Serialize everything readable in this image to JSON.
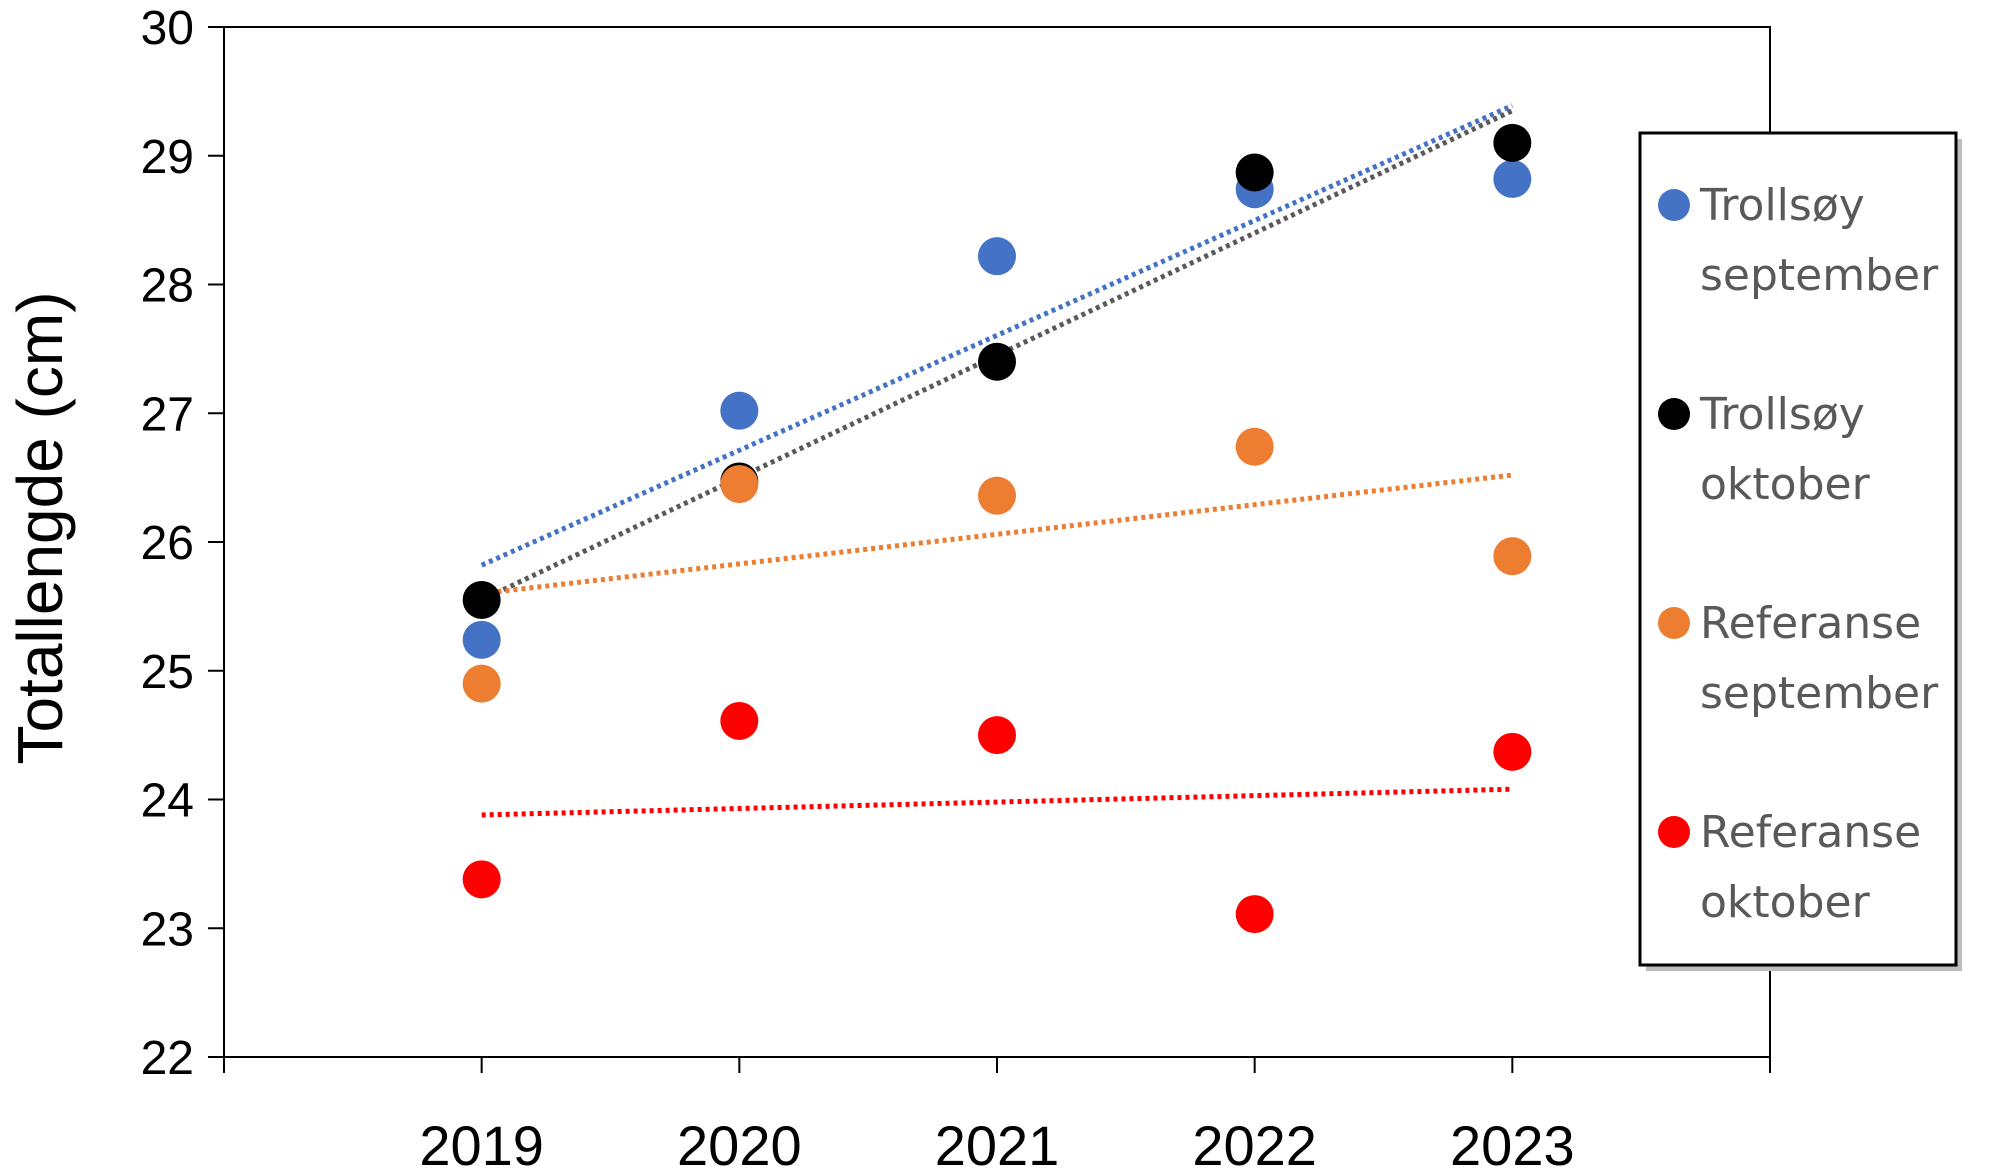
{
  "chart_data": {
    "type": "scatter",
    "title": "",
    "xlabel": "",
    "ylabel": "Totallengde (cm)",
    "x": [
      2019,
      2020,
      2021,
      2022,
      2023
    ],
    "xlim": [
      2018,
      2024
    ],
    "ylim": [
      22,
      30
    ],
    "yticks": [
      22,
      23,
      24,
      25,
      26,
      27,
      28,
      29,
      30
    ],
    "grid": false,
    "legend_position": "right",
    "series": [
      {
        "name": "Trollsøy september",
        "legend_lines": [
          "Trollsøy",
          "september"
        ],
        "color": "#4472C4",
        "values": [
          25.24,
          27.02,
          28.22,
          28.74,
          28.82
        ],
        "trendline": {
          "start": 25.82,
          "end": 29.39,
          "color": "#4472C4"
        }
      },
      {
        "name": "Trollsøy oktober",
        "legend_lines": [
          "Trollsøy",
          "oktober"
        ],
        "color": "#000000",
        "values": [
          25.55,
          26.47,
          27.4,
          28.87,
          29.1
        ],
        "trendline": {
          "start": 25.55,
          "end": 29.35,
          "color": "#595959"
        }
      },
      {
        "name": "Referanse september",
        "legend_lines": [
          "Referanse",
          "september"
        ],
        "color": "#ED7D31",
        "values": [
          24.9,
          26.45,
          26.36,
          26.74,
          25.89
        ],
        "trendline": {
          "start": 25.6,
          "end": 26.52,
          "color": "#ED7D31"
        }
      },
      {
        "name": "Referanse oktober",
        "legend_lines": [
          "Referanse",
          "oktober"
        ],
        "color": "#FF0000",
        "values": [
          23.38,
          24.61,
          24.5,
          23.11,
          24.37
        ],
        "trendline": {
          "start": 23.88,
          "end": 24.08,
          "color": "#FF0000"
        }
      }
    ]
  }
}
